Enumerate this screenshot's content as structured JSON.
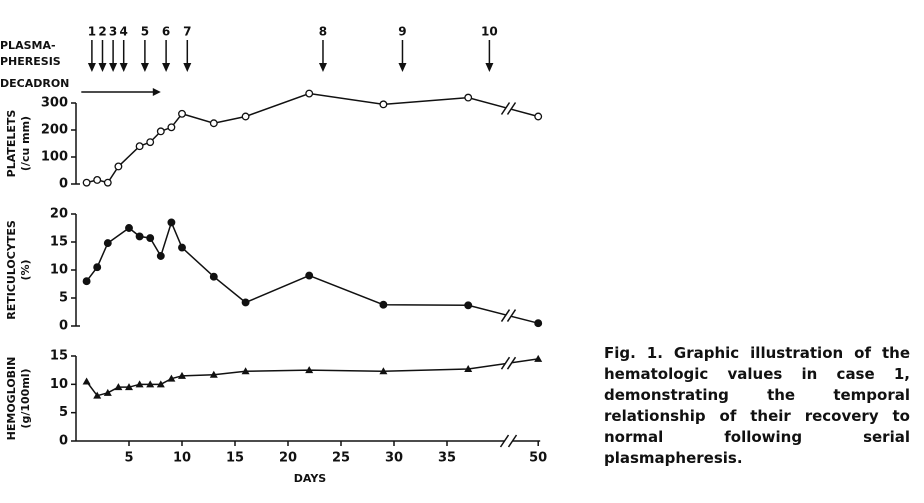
{
  "chart_data": [
    {
      "type": "line",
      "ylabel": [
        "PLATELETS",
        "(/cu mm)"
      ],
      "marker": "open-circle",
      "color": "#111111",
      "x": [
        1,
        2,
        3,
        4,
        6,
        7,
        8,
        9,
        10,
        13,
        16,
        22,
        29,
        37,
        50
      ],
      "values": [
        5,
        15,
        5,
        65,
        140,
        155,
        195,
        210,
        260,
        225,
        250,
        335,
        295,
        320,
        250
      ],
      "xlim": [
        0,
        50
      ],
      "x_break": [
        40,
        48
      ],
      "ylim": [
        0,
        300
      ],
      "yticks": [
        0,
        100,
        200,
        300
      ],
      "plasmapheresis": {
        "label": [
          "PLASMA-",
          "PHERESIS"
        ],
        "x": [
          1.5,
          2.5,
          3.5,
          4.5,
          6.5,
          8.5,
          10.5,
          23.3,
          30.8,
          39
        ],
        "labels": [
          "1",
          "2",
          "3",
          "4",
          "5",
          "6",
          "7",
          "8",
          "9",
          "10"
        ]
      },
      "decadron": {
        "label": "DECADRON",
        "x": [
          0.5,
          8
        ]
      }
    },
    {
      "type": "line",
      "ylabel": [
        "RETICULOCYTES",
        "(%)"
      ],
      "marker": "filled-circle",
      "color": "#111111",
      "x": [
        1,
        2,
        3,
        5,
        6,
        7,
        8,
        9,
        10,
        13,
        16,
        22,
        29,
        37,
        50
      ],
      "values": [
        8,
        10.5,
        14.8,
        17.5,
        16,
        15.7,
        12.5,
        18.5,
        14,
        8.8,
        4.2,
        9,
        3.8,
        3.7,
        0.5
      ],
      "xlim": [
        0,
        50
      ],
      "x_break": [
        40,
        48
      ],
      "ylim": [
        0,
        20
      ],
      "yticks": [
        0,
        5,
        10,
        15,
        20
      ]
    },
    {
      "type": "line",
      "ylabel": [
        "HEMOGLOBIN",
        "(g/100ml)"
      ],
      "marker": "filled-triangle",
      "color": "#111111",
      "x": [
        1,
        2,
        3,
        4,
        5,
        6,
        7,
        8,
        9,
        10,
        13,
        16,
        22,
        29,
        37,
        50
      ],
      "values": [
        10.5,
        8,
        8.5,
        9.5,
        9.5,
        10,
        10,
        10,
        11,
        11.5,
        11.7,
        12.3,
        12.5,
        12.3,
        12.7,
        14.5
      ],
      "xlim": [
        0,
        50
      ],
      "x_break": [
        40,
        48
      ],
      "ylim": [
        0,
        15
      ],
      "yticks": [
        0,
        5,
        10,
        15
      ],
      "xticks": [
        5,
        10,
        15,
        20,
        25,
        30,
        35,
        50
      ],
      "xlabel": "DAYS"
    }
  ],
  "caption": "Fig. 1. Graphic illustration of the hematologic values in case 1, demonstrating the temporal relationship of their recovery to normal following serial plasmapheresis."
}
